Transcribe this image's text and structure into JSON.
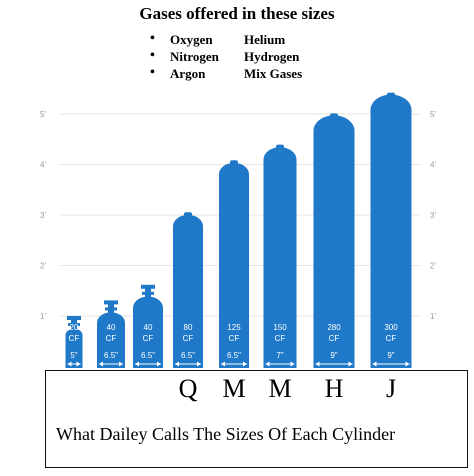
{
  "title": "Gases offered in these sizes",
  "gases": [
    {
      "left": "Oxygen",
      "right": "Helium"
    },
    {
      "left": "Nitrogen",
      "right": "Hydrogen"
    },
    {
      "left": "Argon",
      "right": "Mix Gases"
    }
  ],
  "y_axis_ticks": [
    "1'",
    "2'",
    "3'",
    "4'",
    "5'"
  ],
  "cylinders": [
    {
      "capacity": "20",
      "unit": "CF",
      "diameter": "5\"",
      "height_ft": 1.0,
      "letter": ""
    },
    {
      "capacity": "40",
      "unit": "CF",
      "diameter": "6.5\"",
      "height_ft": 1.3,
      "letter": ""
    },
    {
      "capacity": "40",
      "unit": "CF",
      "diameter": "6.5\"",
      "height_ft": 1.6,
      "letter": ""
    },
    {
      "capacity": "80",
      "unit": "CF",
      "diameter": "6.5\"",
      "height_ft": 2.9,
      "letter": "Q"
    },
    {
      "capacity": "125",
      "unit": "CF",
      "diameter": "6.5\"",
      "height_ft": 3.9,
      "letter": "M"
    },
    {
      "capacity": "150",
      "unit": "CF",
      "diameter": "7\"",
      "height_ft": 4.2,
      "letter": "M"
    },
    {
      "capacity": "280",
      "unit": "CF",
      "diameter": "9\"",
      "height_ft": 4.8,
      "letter": "H"
    },
    {
      "capacity": "300",
      "unit": "CF",
      "diameter": "9\"",
      "height_ft": 5.2,
      "letter": "J"
    }
  ],
  "caption": "What Dailey Calls The Sizes Of Each Cylinder",
  "colors": {
    "cylinder": "#1f78c8",
    "grid": "#e6e6e6",
    "tick_text": "#9a9a9a"
  }
}
